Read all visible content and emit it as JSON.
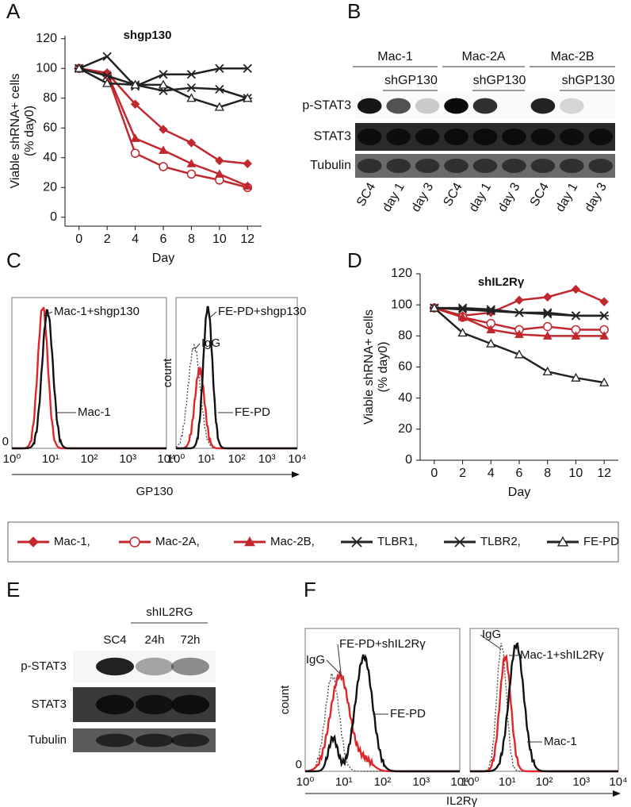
{
  "panel_labels": [
    "A",
    "B",
    "C",
    "D",
    "E",
    "F"
  ],
  "chart_data": [
    {
      "type": "line",
      "title": "shgp130",
      "xlabel": "Day",
      "ylabel": [
        "Viable shRNA+ cells",
        "(% day0)"
      ],
      "x": [
        0,
        2,
        4,
        6,
        8,
        10,
        12
      ],
      "xlim": [
        -1,
        13
      ],
      "xticks": [
        0,
        2,
        4,
        6,
        8,
        10,
        12
      ],
      "ylim": [
        -6,
        122
      ],
      "yticks": [
        0,
        20,
        40,
        60,
        80,
        100,
        120
      ],
      "series": [
        {
          "name": "Mac-1,",
          "color": "#c1272d",
          "marker": "diamond",
          "values": [
            100,
            97,
            76,
            59,
            50,
            38,
            36
          ]
        },
        {
          "name": "Mac-2A,",
          "color": "#c1272d",
          "marker": "circle-open",
          "values": [
            100,
            96,
            43,
            34,
            29,
            25,
            20
          ]
        },
        {
          "name": "Mac-2B,",
          "color": "#c1272d",
          "marker": "triangle",
          "values": [
            100,
            97,
            53,
            45,
            36,
            29,
            21
          ]
        },
        {
          "name": "TLBR1,",
          "color": "#222222",
          "marker": "x",
          "values": [
            100,
            108,
            88,
            96,
            96,
            100,
            100
          ]
        },
        {
          "name": "TLBR2,",
          "color": "#222222",
          "marker": "asterisk",
          "values": [
            100,
            95,
            89,
            85,
            87,
            86,
            80
          ]
        },
        {
          "name": "FE-PD",
          "color": "#222222",
          "marker": "triangle-open",
          "values": [
            100,
            90,
            89,
            89,
            80,
            74,
            80
          ]
        }
      ]
    },
    {
      "type": "line",
      "title": "shIL2Rγ",
      "xlabel": "Day",
      "ylabel": [
        "Viable shRNA+ cells",
        "(% day0)"
      ],
      "x": [
        0,
        2,
        4,
        6,
        8,
        10,
        12
      ],
      "xlim": [
        -1,
        13
      ],
      "xticks": [
        0,
        2,
        4,
        6,
        8,
        10,
        12
      ],
      "ylim": [
        0,
        120
      ],
      "yticks": [
        0,
        20,
        40,
        60,
        80,
        100,
        120
      ],
      "series": [
        {
          "name": "Mac-1,",
          "color": "#c1272d",
          "marker": "diamond",
          "values": [
            98,
            93,
            95,
            103,
            105,
            110,
            102
          ]
        },
        {
          "name": "Mac-2A,",
          "color": "#c1272d",
          "marker": "circle-open",
          "values": [
            98,
            92,
            88,
            84,
            86,
            84,
            84
          ]
        },
        {
          "name": "Mac-2B,",
          "color": "#c1272d",
          "marker": "triangle",
          "values": [
            98,
            92,
            84,
            81,
            80,
            80,
            80
          ]
        },
        {
          "name": "TLBR1,",
          "color": "#222222",
          "marker": "x",
          "values": [
            98,
            98,
            97,
            95,
            95,
            93,
            93
          ]
        },
        {
          "name": "TLBR2,",
          "color": "#222222",
          "marker": "asterisk",
          "values": [
            98,
            97,
            96,
            95,
            94,
            93,
            93
          ]
        },
        {
          "name": "FE-PD",
          "color": "#222222",
          "marker": "triangle-open",
          "values": [
            98,
            82,
            75,
            68,
            57,
            53,
            50
          ]
        }
      ]
    }
  ],
  "blot_b": {
    "groups": [
      "Mac-1",
      "Mac-2A",
      "Mac-2B"
    ],
    "treatment": [
      "shGP130",
      "shGP130",
      "shGP130"
    ],
    "rows": [
      "p-STAT3",
      "STAT3",
      "Tubulin"
    ],
    "lanes": [
      "SC4",
      "day 1",
      "day 3",
      "SC4",
      "day 1",
      "day 3",
      "SC4",
      "day 1",
      "day 3"
    ]
  },
  "hist_c": {
    "panels": [
      {
        "labels": [
          "Mac-1+shgp130",
          "Mac-1"
        ]
      },
      {
        "labels": [
          "FE-PD+shgp130",
          "IgG",
          "FE-PD"
        ]
      }
    ],
    "ytick": "0",
    "ylabel": "count",
    "xlabel": "GP130",
    "xticks": [
      "10⁰",
      "10¹",
      "10²",
      "10³",
      "10⁴"
    ]
  },
  "blot_e": {
    "treatment": "shIL2RG",
    "lanes": [
      "SC4",
      "24h",
      "72h"
    ],
    "rows": [
      "p-STAT3",
      "STAT3",
      "Tubulin"
    ]
  },
  "hist_f": {
    "panels": [
      {
        "labels": [
          "IgG",
          "FE-PD+shIL2Rγ",
          "FE-PD"
        ]
      },
      {
        "labels": [
          "IgG",
          "Mac-1+shIL2Rγ",
          "Mac-1"
        ]
      }
    ],
    "ytick": "0",
    "ylabel": "count",
    "xlabel": "IL2Rγ",
    "xticks": [
      "10⁰",
      "10¹",
      "10²",
      "10³",
      "10⁴"
    ]
  }
}
